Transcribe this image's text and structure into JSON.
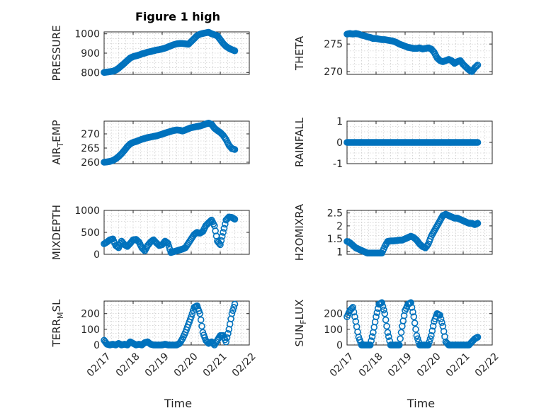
{
  "figure": {
    "title": "Figure 1 high",
    "marker_color": "#0072BD"
  },
  "chart_data": [
    {
      "type": "scatter",
      "name": "pressure-panel",
      "title": "Figure 1 high",
      "ylabel_parts": [
        "PRESSURE"
      ],
      "ylim": [
        790,
        1010
      ],
      "yticks": [
        800,
        900,
        1000
      ],
      "ytick_labels": [
        "800",
        "900",
        "1000"
      ],
      "xlim": [
        0,
        5
      ],
      "xticks": [
        0,
        1,
        2,
        3,
        4,
        5
      ],
      "xtick_labels": [],
      "xlabel": "",
      "x": [
        0.0,
        0.1,
        0.2,
        0.3,
        0.4,
        0.5,
        0.6,
        0.7,
        0.8,
        0.9,
        1.0,
        1.1,
        1.2,
        1.3,
        1.4,
        1.5,
        1.6,
        1.7,
        1.8,
        1.9,
        2.0,
        2.1,
        2.2,
        2.3,
        2.4,
        2.5,
        2.6,
        2.7,
        2.8,
        2.9,
        3.0,
        3.1,
        3.2,
        3.3,
        3.4,
        3.5,
        3.6,
        3.7,
        3.8,
        3.9,
        4.0,
        4.1,
        4.2,
        4.3,
        4.4,
        4.5
      ],
      "values": [
        800,
        802,
        804,
        806,
        812,
        822,
        835,
        848,
        862,
        875,
        882,
        886,
        890,
        896,
        900,
        905,
        908,
        912,
        916,
        918,
        922,
        926,
        932,
        938,
        944,
        948,
        950,
        950,
        948,
        946,
        960,
        975,
        990,
        998,
        1002,
        1005,
        1008,
        1000,
        995,
        990,
        970,
        950,
        935,
        925,
        918,
        912
      ]
    },
    {
      "type": "scatter",
      "name": "theta-panel",
      "ylabel_parts": [
        "THETA"
      ],
      "ylim": [
        269.5,
        277.2
      ],
      "yticks": [
        270,
        275
      ],
      "ytick_labels": [
        "270",
        "275"
      ],
      "xlim": [
        0,
        5
      ],
      "xticks": [
        0,
        1,
        2,
        3,
        4,
        5
      ],
      "xtick_labels": [],
      "xlabel": "",
      "x": [
        0.0,
        0.1,
        0.2,
        0.3,
        0.4,
        0.5,
        0.6,
        0.7,
        0.8,
        0.9,
        1.0,
        1.1,
        1.2,
        1.3,
        1.4,
        1.5,
        1.6,
        1.7,
        1.8,
        1.9,
        2.0,
        2.1,
        2.2,
        2.3,
        2.4,
        2.5,
        2.6,
        2.7,
        2.8,
        2.9,
        3.0,
        3.1,
        3.2,
        3.3,
        3.4,
        3.5,
        3.6,
        3.7,
        3.8,
        3.9,
        4.0,
        4.1,
        4.2,
        4.3,
        4.4,
        4.5
      ],
      "values": [
        276.8,
        276.9,
        276.8,
        276.9,
        276.8,
        276.6,
        276.5,
        276.3,
        276.2,
        276.0,
        276.0,
        275.9,
        275.8,
        275.8,
        275.7,
        275.6,
        275.5,
        275.3,
        275.0,
        274.8,
        274.6,
        274.4,
        274.3,
        274.2,
        274.2,
        274.3,
        274.1,
        274.2,
        274.3,
        274.1,
        273.5,
        272.5,
        272.0,
        271.8,
        272.0,
        272.2,
        272.0,
        271.5,
        271.8,
        272.0,
        271.3,
        270.8,
        270.3,
        270.0,
        270.7,
        271.2
      ]
    },
    {
      "type": "scatter",
      "name": "air-temp-panel",
      "ylabel_parts": [
        "AIR",
        "T",
        "EMP"
      ],
      "ylim": [
        259.5,
        274.5
      ],
      "yticks": [
        260,
        265,
        270
      ],
      "ytick_labels": [
        "260",
        "265",
        "270"
      ],
      "xlim": [
        0,
        5
      ],
      "xticks": [
        0,
        1,
        2,
        3,
        4,
        5
      ],
      "xtick_labels": [],
      "xlabel": "",
      "x": [
        0.0,
        0.1,
        0.2,
        0.3,
        0.4,
        0.5,
        0.6,
        0.7,
        0.8,
        0.9,
        1.0,
        1.1,
        1.2,
        1.3,
        1.4,
        1.5,
        1.6,
        1.7,
        1.8,
        1.9,
        2.0,
        2.1,
        2.2,
        2.3,
        2.4,
        2.5,
        2.6,
        2.7,
        2.8,
        2.9,
        3.0,
        3.1,
        3.2,
        3.3,
        3.4,
        3.5,
        3.6,
        3.7,
        3.8,
        3.9,
        4.0,
        4.1,
        4.2,
        4.3,
        4.4,
        4.5
      ],
      "values": [
        260.0,
        260.1,
        260.3,
        260.6,
        261.2,
        262.0,
        263.0,
        264.2,
        265.5,
        266.5,
        267.0,
        267.3,
        267.7,
        268.1,
        268.4,
        268.7,
        268.9,
        269.1,
        269.3,
        269.6,
        269.9,
        270.3,
        270.6,
        270.9,
        271.2,
        271.4,
        271.3,
        271.0,
        271.4,
        271.8,
        272.2,
        272.4,
        272.6,
        272.8,
        273.1,
        273.5,
        273.8,
        273.4,
        272.0,
        271.2,
        270.5,
        269.5,
        268.0,
        266.0,
        264.8,
        264.5
      ]
    },
    {
      "type": "scatter",
      "name": "rainfall-panel",
      "ylabel_parts": [
        "RAINFALL"
      ],
      "ylim": [
        -1,
        1
      ],
      "yticks": [
        -1,
        0,
        1
      ],
      "ytick_labels": [
        "-1",
        "0",
        "1"
      ],
      "xlim": [
        0,
        5
      ],
      "xticks": [
        0,
        1,
        2,
        3,
        4,
        5
      ],
      "xtick_labels": [],
      "xlabel": "",
      "x": [
        0.0,
        0.1,
        0.2,
        0.3,
        0.4,
        0.5,
        0.6,
        0.7,
        0.8,
        0.9,
        1.0,
        1.1,
        1.2,
        1.3,
        1.4,
        1.5,
        1.6,
        1.7,
        1.8,
        1.9,
        2.0,
        2.1,
        2.2,
        2.3,
        2.4,
        2.5,
        2.6,
        2.7,
        2.8,
        2.9,
        3.0,
        3.1,
        3.2,
        3.3,
        3.4,
        3.5,
        3.6,
        3.7,
        3.8,
        3.9,
        4.0,
        4.1,
        4.2,
        4.3,
        4.4,
        4.5
      ],
      "values": [
        0,
        0,
        0,
        0,
        0,
        0,
        0,
        0,
        0,
        0,
        0,
        0,
        0,
        0,
        0,
        0,
        0,
        0,
        0,
        0,
        0,
        0,
        0,
        0,
        0,
        0,
        0,
        0,
        0,
        0,
        0,
        0,
        0,
        0,
        0,
        0,
        0,
        0,
        0,
        0,
        0,
        0,
        0,
        0,
        0,
        0
      ]
    },
    {
      "type": "scatter",
      "name": "mixdepth-panel",
      "ylabel_parts": [
        "MIXDEPTH"
      ],
      "ylim": [
        0,
        1000
      ],
      "yticks": [
        0,
        500,
        1000
      ],
      "ytick_labels": [
        "0",
        "500",
        "1000"
      ],
      "xlim": [
        0,
        5
      ],
      "xticks": [
        0,
        1,
        2,
        3,
        4,
        5
      ],
      "xtick_labels": [],
      "xlabel": "",
      "x": [
        0.0,
        0.1,
        0.2,
        0.3,
        0.4,
        0.5,
        0.6,
        0.7,
        0.8,
        0.9,
        1.0,
        1.1,
        1.2,
        1.3,
        1.4,
        1.5,
        1.6,
        1.7,
        1.8,
        1.9,
        2.0,
        2.1,
        2.2,
        2.3,
        2.4,
        2.5,
        2.6,
        2.7,
        2.8,
        2.9,
        3.0,
        3.1,
        3.2,
        3.3,
        3.4,
        3.5,
        3.6,
        3.7,
        3.8,
        3.9,
        4.0,
        4.1,
        4.2,
        4.3,
        4.4,
        4.5
      ],
      "values": [
        240,
        280,
        330,
        350,
        200,
        150,
        300,
        220,
        180,
        250,
        330,
        340,
        280,
        150,
        80,
        200,
        280,
        330,
        260,
        200,
        220,
        300,
        250,
        40,
        60,
        80,
        100,
        120,
        150,
        250,
        350,
        450,
        500,
        480,
        520,
        650,
        720,
        780,
        650,
        300,
        220,
        500,
        780,
        850,
        840,
        800
      ]
    },
    {
      "type": "scatter",
      "name": "h2omixra-panel",
      "ylabel_parts": [
        "H2OMIXRA"
      ],
      "ylim": [
        0.9,
        2.6
      ],
      "yticks": [
        1,
        1.5,
        2,
        2.5
      ],
      "ytick_labels": [
        "1",
        "1.5",
        "2",
        "2.5"
      ],
      "xlim": [
        0,
        5
      ],
      "xticks": [
        0,
        1,
        2,
        3,
        4,
        5
      ],
      "xtick_labels": [],
      "xlabel": "",
      "x": [
        0.0,
        0.1,
        0.2,
        0.3,
        0.4,
        0.5,
        0.6,
        0.7,
        0.8,
        0.9,
        1.0,
        1.1,
        1.2,
        1.3,
        1.4,
        1.5,
        1.6,
        1.7,
        1.8,
        1.9,
        2.0,
        2.1,
        2.2,
        2.3,
        2.4,
        2.5,
        2.6,
        2.7,
        2.8,
        2.9,
        3.0,
        3.1,
        3.2,
        3.3,
        3.4,
        3.5,
        3.6,
        3.7,
        3.8,
        3.9,
        4.0,
        4.1,
        4.2,
        4.3,
        4.4,
        4.5
      ],
      "values": [
        1.4,
        1.35,
        1.25,
        1.15,
        1.1,
        1.05,
        1.0,
        0.95,
        0.95,
        0.95,
        0.95,
        0.95,
        0.95,
        1.2,
        1.4,
        1.42,
        1.42,
        1.43,
        1.45,
        1.45,
        1.5,
        1.55,
        1.6,
        1.55,
        1.45,
        1.3,
        1.2,
        1.15,
        1.3,
        1.6,
        1.8,
        2.0,
        2.2,
        2.4,
        2.45,
        2.4,
        2.35,
        2.3,
        2.3,
        2.25,
        2.2,
        2.15,
        2.1,
        2.1,
        2.05,
        2.1
      ]
    },
    {
      "type": "scatter",
      "name": "terrmsl-panel",
      "ylabel_parts": [
        "TERR",
        "M",
        "SL"
      ],
      "ylim": [
        0,
        280
      ],
      "yticks": [
        0,
        100,
        200
      ],
      "ytick_labels": [
        "0",
        "100",
        "200"
      ],
      "xlim": [
        0,
        5
      ],
      "xticks": [
        0,
        1,
        2,
        3,
        4,
        5
      ],
      "xtick_labels": [
        "02/17",
        "02/18",
        "02/19",
        "02/20",
        "02/21",
        "02/22"
      ],
      "xlabel": "Time",
      "x": [
        0.0,
        0.1,
        0.2,
        0.3,
        0.4,
        0.5,
        0.6,
        0.7,
        0.8,
        0.9,
        1.0,
        1.1,
        1.2,
        1.3,
        1.4,
        1.5,
        1.6,
        1.7,
        1.8,
        1.9,
        2.0,
        2.1,
        2.2,
        2.3,
        2.4,
        2.5,
        2.6,
        2.7,
        2.8,
        2.9,
        3.0,
        3.1,
        3.2,
        3.3,
        3.4,
        3.5,
        3.6,
        3.7,
        3.8,
        3.9,
        4.0,
        4.1,
        4.2,
        4.3,
        4.4,
        4.5
      ],
      "values": [
        30,
        5,
        0,
        5,
        0,
        10,
        0,
        5,
        0,
        20,
        10,
        0,
        5,
        0,
        15,
        20,
        5,
        0,
        0,
        0,
        0,
        5,
        0,
        0,
        0,
        0,
        10,
        40,
        80,
        130,
        180,
        240,
        250,
        200,
        80,
        30,
        10,
        20,
        0,
        30,
        60,
        60,
        20,
        100,
        200,
        260
      ]
    },
    {
      "type": "scatter",
      "name": "sunflux-panel",
      "ylabel_parts": [
        "SUN",
        "F",
        "LUX"
      ],
      "ylim": [
        0,
        280
      ],
      "yticks": [
        0,
        100,
        200
      ],
      "ytick_labels": [
        "0",
        "100",
        "200"
      ],
      "xlim": [
        0,
        5
      ],
      "xticks": [
        0,
        1,
        2,
        3,
        4,
        5
      ],
      "xtick_labels": [
        "02/17",
        "02/18",
        "02/19",
        "02/20",
        "02/21",
        "02/22"
      ],
      "xlabel": "Time",
      "x": [
        0.0,
        0.1,
        0.2,
        0.3,
        0.4,
        0.5,
        0.6,
        0.7,
        0.8,
        0.9,
        1.0,
        1.1,
        1.2,
        1.3,
        1.4,
        1.5,
        1.6,
        1.7,
        1.8,
        1.9,
        2.0,
        2.1,
        2.2,
        2.3,
        2.4,
        2.5,
        2.6,
        2.7,
        2.8,
        2.9,
        3.0,
        3.1,
        3.2,
        3.3,
        3.4,
        3.5,
        3.6,
        3.7,
        3.8,
        3.9,
        4.0,
        4.1,
        4.2,
        4.3,
        4.4,
        4.5
      ],
      "values": [
        180,
        220,
        240,
        150,
        50,
        0,
        0,
        0,
        0,
        80,
        180,
        260,
        270,
        200,
        80,
        0,
        0,
        0,
        0,
        120,
        220,
        260,
        270,
        180,
        60,
        0,
        0,
        0,
        0,
        60,
        150,
        200,
        190,
        120,
        20,
        0,
        0,
        0,
        0,
        0,
        0,
        0,
        0,
        20,
        40,
        50
      ]
    }
  ]
}
